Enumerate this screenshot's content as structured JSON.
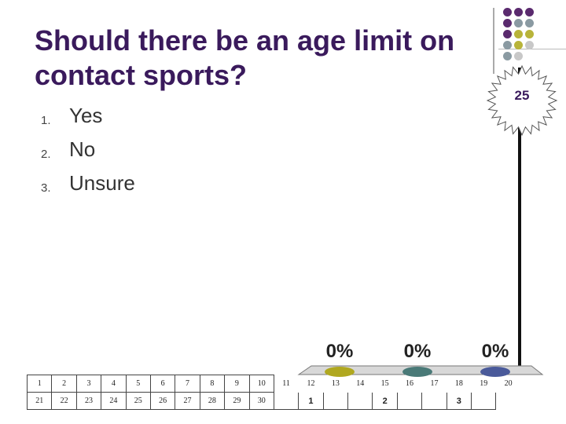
{
  "question": {
    "line1": "Should there be an age limit on",
    "line2": "contact sports?"
  },
  "options": [
    {
      "number": "1.",
      "label": "Yes"
    },
    {
      "number": "2.",
      "label": "No"
    },
    {
      "number": "3.",
      "label": "Unsure"
    }
  ],
  "countdown": {
    "value": "25"
  },
  "results": [
    {
      "percent": "0%",
      "color": "#b0a820",
      "answer": "1"
    },
    {
      "percent": "0%",
      "color": "#4a7a78",
      "answer": "2"
    },
    {
      "percent": "0%",
      "color": "#4a5a9a",
      "answer": "3"
    }
  ],
  "keypad": {
    "row1": [
      "1",
      "2",
      "3",
      "4",
      "5",
      "6",
      "7",
      "8",
      "9",
      "10",
      "11",
      "12",
      "13",
      "14",
      "15",
      "16",
      "17",
      "18",
      "19",
      "20"
    ],
    "row2": [
      "21",
      "22",
      "23",
      "24",
      "25",
      "26",
      "27",
      "28",
      "29",
      "30",
      "",
      "1",
      "",
      "",
      "2",
      "",
      "",
      "3",
      "",
      ""
    ]
  },
  "colors": {
    "title": "#3a1a5c",
    "dot_purple": "#5a2a6e",
    "dot_gray": "#8a9aa2",
    "dot_olive": "#b8b43a",
    "dot_light": "#c8c8c8"
  }
}
